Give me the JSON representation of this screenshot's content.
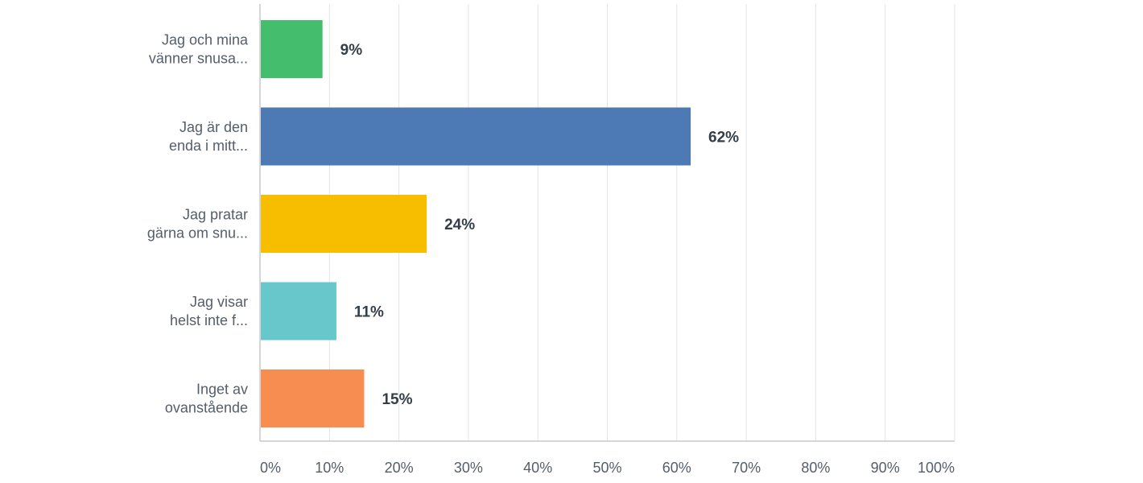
{
  "chart_data": {
    "type": "bar",
    "orientation": "horizontal",
    "categories": [
      [
        "Jag och mina",
        "vänner snusa..."
      ],
      [
        "Jag är den",
        "enda i mitt..."
      ],
      [
        "Jag pratar",
        "gärna om snu..."
      ],
      [
        "Jag visar",
        "helst inte f..."
      ],
      [
        "Inget av",
        "ovanstående"
      ]
    ],
    "values": [
      9,
      62,
      24,
      11,
      15
    ],
    "value_labels": [
      "9%",
      "62%",
      "24%",
      "11%",
      "15%"
    ],
    "colors": [
      "#44be6c",
      "#4d79b5",
      "#f7be00",
      "#67c7cb",
      "#f78d51"
    ],
    "xlim": [
      0,
      100
    ],
    "xticks": [
      0,
      10,
      20,
      30,
      40,
      50,
      60,
      70,
      80,
      90,
      100
    ],
    "xtick_labels": [
      "0%",
      "10%",
      "20%",
      "30%",
      "40%",
      "50%",
      "60%",
      "70%",
      "80%",
      "90%",
      "100%"
    ],
    "grid": true,
    "title": "",
    "xlabel": "",
    "ylabel": ""
  }
}
